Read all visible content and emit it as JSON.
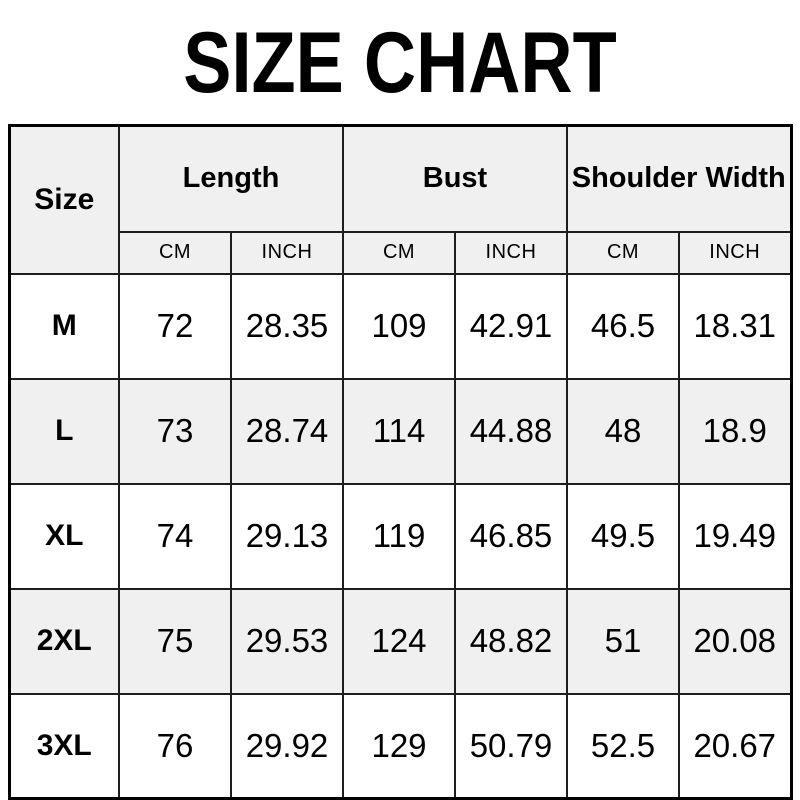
{
  "title": "SIZE CHART",
  "table": {
    "corner_label": "Size",
    "groups": [
      {
        "label": "Length"
      },
      {
        "label": "Bust"
      },
      {
        "label": "Shoulder Width"
      }
    ],
    "units": [
      "CM",
      "INCH",
      "CM",
      "INCH",
      "CM",
      "INCH"
    ],
    "rows": [
      {
        "size": "M",
        "values": [
          "72",
          "28.35",
          "109",
          "42.91",
          "46.5",
          "18.31"
        ]
      },
      {
        "size": "L",
        "values": [
          "73",
          "28.74",
          "114",
          "44.88",
          "48",
          "18.9"
        ]
      },
      {
        "size": "XL",
        "values": [
          "74",
          "29.13",
          "119",
          "46.85",
          "49.5",
          "19.49"
        ]
      },
      {
        "size": "2XL",
        "values": [
          "75",
          "29.53",
          "124",
          "48.82",
          "51",
          "20.08"
        ]
      },
      {
        "size": "3XL",
        "values": [
          "76",
          "29.92",
          "129",
          "50.79",
          "52.5",
          "20.67"
        ]
      }
    ]
  },
  "colors": {
    "header_bg": "#f0f0f0",
    "row_bg": "#ffffff",
    "row_alt_bg": "#f0f0f0",
    "border": "#1d1d1d",
    "outer_border": "#000000",
    "text": "#000000"
  },
  "chart_data": {
    "type": "table",
    "title": "SIZE CHART",
    "columns": [
      "Size",
      "Length CM",
      "Length INCH",
      "Bust CM",
      "Bust INCH",
      "Shoulder Width CM",
      "Shoulder Width INCH"
    ],
    "rows": [
      [
        "M",
        72,
        28.35,
        109,
        42.91,
        46.5,
        18.31
      ],
      [
        "L",
        73,
        28.74,
        114,
        44.88,
        48,
        18.9
      ],
      [
        "XL",
        74,
        29.13,
        119,
        46.85,
        49.5,
        19.49
      ],
      [
        "2XL",
        75,
        29.53,
        124,
        48.82,
        51,
        20.08
      ],
      [
        "3XL",
        76,
        29.92,
        129,
        50.79,
        52.5,
        20.67
      ]
    ],
    "layout_hints": {
      "header_rows": 2,
      "column_groups": [
        "Length",
        "Bust",
        "Shoulder Width"
      ],
      "unit_subheaders": [
        "CM",
        "INCH"
      ],
      "zebra_striping": true
    }
  }
}
